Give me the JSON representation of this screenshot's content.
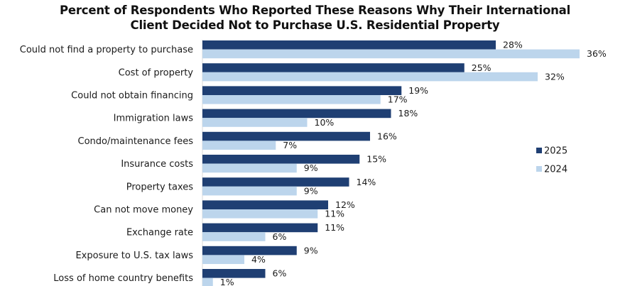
{
  "chart_data": {
    "type": "bar",
    "orientation": "horizontal",
    "title_lines": [
      "Percent of Respondents Who Reported These Reasons Why Their International",
      "Client Decided Not to Purchase U.S. Residential Property"
    ],
    "categories": [
      "Could not find a property to purchase",
      "Cost of property",
      "Could not obtain financing",
      "Immigration laws",
      "Condo/maintenance fees",
      "Insurance costs",
      "Property taxes",
      "Can not move money",
      "Exchange rate",
      "Exposure to U.S. tax laws",
      "Loss of home country benefits"
    ],
    "series": [
      {
        "name": "2025",
        "color": "#1f3f73",
        "values": [
          28,
          25,
          19,
          18,
          16,
          15,
          14,
          12,
          11,
          9,
          6
        ]
      },
      {
        "name": "2024",
        "color": "#bcd5ec",
        "values": [
          36,
          32,
          17,
          10,
          7,
          9,
          9,
          11,
          6,
          4,
          1
        ]
      }
    ],
    "value_suffix": "%",
    "xlim": [
      0,
      40
    ],
    "grid": false,
    "legend_position": "right"
  }
}
